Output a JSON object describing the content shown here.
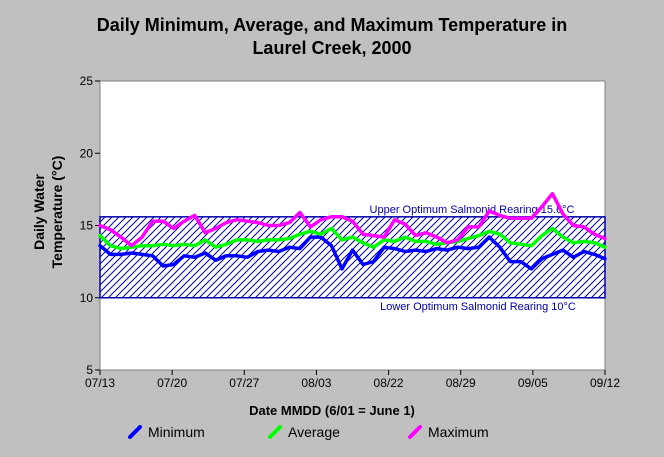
{
  "chart_data": {
    "type": "line",
    "title_line1": "Daily Minimum, Average, and Maximum Temperature in",
    "title_line2": "Laurel Creek, 2000",
    "ylabel_line1": "Daily Water",
    "ylabel_line2": "Temperature (°C)",
    "xlabel": "Date MMDD (6/01 = June 1)",
    "ylim": [
      5,
      25
    ],
    "yticks": [
      "5",
      "10",
      "15",
      "20",
      "25"
    ],
    "xticks": [
      "07/13",
      "07/20",
      "07/27",
      "08/03",
      "08/22",
      "08/29",
      "09/05",
      "09/12"
    ],
    "reference_band": {
      "upper": 15.6,
      "lower": 10,
      "upper_label": "Upper Optimum Salmonid Rearing 15.6°C",
      "lower_label": "Lower Optimum Salmonid Rearing 10°C",
      "color": "#0000aa"
    },
    "series": [
      {
        "name": "Minimum",
        "color": "#0000ff",
        "values": [
          13.6,
          13.0,
          13.0,
          13.1,
          13.0,
          12.9,
          12.2,
          12.3,
          12.9,
          12.8,
          13.1,
          12.6,
          12.9,
          12.9,
          12.8,
          13.2,
          13.3,
          13.2,
          13.5,
          13.4,
          14.2,
          14.2,
          13.6,
          12.0,
          13.3,
          12.3,
          12.5,
          13.5,
          13.4,
          13.2,
          13.3,
          13.2,
          13.4,
          13.3,
          13.5,
          13.4,
          13.5,
          14.2,
          13.5,
          12.5,
          12.5,
          12.0,
          12.7,
          13.0,
          13.3,
          12.8,
          13.2,
          13.0,
          12.7
        ]
      },
      {
        "name": "Average",
        "color": "#00ff00",
        "values": [
          14.3,
          13.6,
          13.4,
          13.5,
          13.6,
          13.6,
          13.7,
          13.6,
          13.7,
          13.6,
          14.0,
          13.5,
          13.7,
          14.0,
          14.0,
          13.9,
          14.0,
          14.0,
          14.1,
          14.4,
          14.6,
          14.4,
          14.8,
          14.0,
          14.2,
          13.8,
          13.5,
          14.0,
          13.9,
          14.2,
          13.9,
          13.9,
          13.7,
          13.8,
          13.9,
          14.1,
          14.3,
          14.6,
          14.4,
          13.8,
          13.7,
          13.6,
          14.3,
          14.8,
          14.2,
          13.8,
          13.9,
          13.8,
          13.5
        ]
      },
      {
        "name": "Maximum",
        "color": "#ff00ff",
        "values": [
          15.0,
          14.7,
          14.2,
          13.6,
          14.2,
          15.3,
          15.3,
          14.8,
          15.3,
          15.7,
          14.5,
          14.8,
          15.2,
          15.4,
          15.3,
          15.2,
          15.0,
          15.0,
          15.2,
          15.9,
          14.9,
          15.4,
          15.6,
          15.6,
          15.3,
          14.4,
          14.3,
          14.2,
          15.4,
          15.1,
          14.3,
          14.5,
          14.2,
          13.8,
          14.0,
          14.9,
          14.9,
          16.0,
          15.7,
          15.5,
          15.5,
          15.5,
          16.3,
          17.2,
          15.8,
          15.0,
          14.9,
          14.4,
          14.1
        ]
      }
    ]
  }
}
